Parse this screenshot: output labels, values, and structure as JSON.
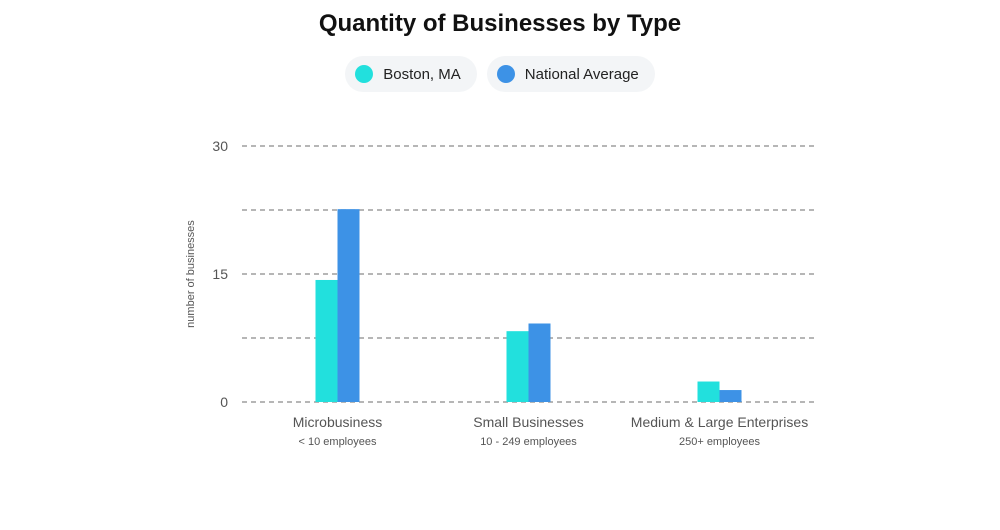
{
  "chart_data": {
    "type": "bar",
    "title": "Quantity of Businesses by Type",
    "ylabel": "number of businesses",
    "xlabel": "",
    "ylim": [
      0,
      30
    ],
    "yticks": [
      0,
      15,
      30
    ],
    "grid": true,
    "legend_position": "top-center",
    "categories": [
      "Microbusiness",
      "Small Businesses",
      "Medium & Large Enterprises"
    ],
    "category_sublabels": [
      "< 10 employees",
      "10 - 249 employees",
      "250+ employees"
    ],
    "series": [
      {
        "name": "Boston, MA",
        "color": "#22e0dd",
        "values": [
          14.3,
          8.3,
          2.4
        ]
      },
      {
        "name": "National Average",
        "color": "#3d92e6",
        "values": [
          22.6,
          9.2,
          1.4
        ]
      }
    ]
  }
}
